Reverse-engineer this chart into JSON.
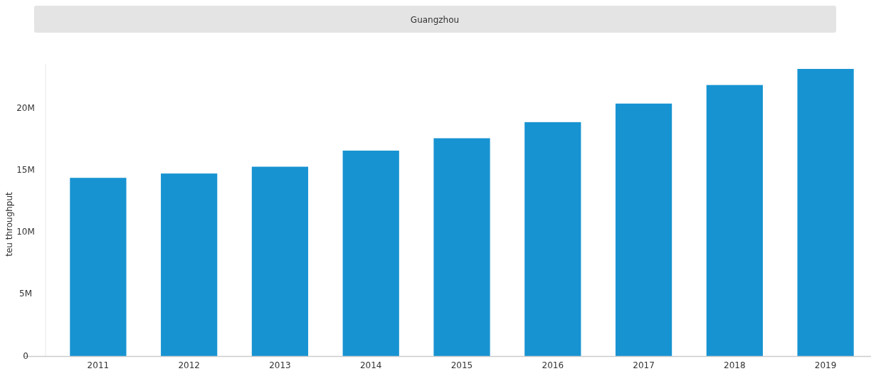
{
  "chart_data": {
    "type": "bar",
    "title": "Guangzhou",
    "ylabel": "teu throughput",
    "categories": [
      "2011",
      "2012",
      "2013",
      "2014",
      "2015",
      "2016",
      "2017",
      "2018",
      "2019"
    ],
    "values": [
      14.4,
      14.75,
      15.3,
      16.6,
      17.6,
      18.9,
      20.4,
      21.9,
      23.2
    ],
    "color": "#1793d1",
    "ylim": [
      0,
      23.6
    ],
    "yticks": [
      {
        "value": 0,
        "label": "0"
      },
      {
        "value": 5,
        "label": "5M"
      },
      {
        "value": 10,
        "label": "10M"
      },
      {
        "value": 15,
        "label": "15M"
      },
      {
        "value": 20,
        "label": "20M"
      }
    ],
    "grid": false
  }
}
